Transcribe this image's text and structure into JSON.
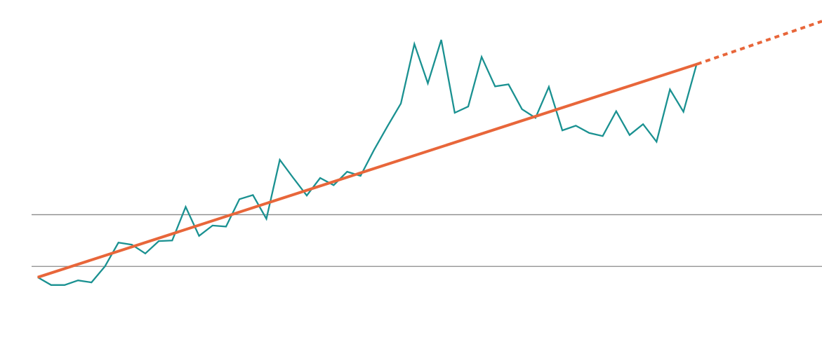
{
  "chart_data": {
    "type": "line",
    "xlim": [
      -2.8,
      58.3
    ],
    "ylim": [
      -15,
      51.5
    ],
    "yticks": [
      0,
      10
    ],
    "grid": true,
    "x": [
      0,
      1,
      2,
      3,
      4,
      5,
      6,
      7,
      8,
      9,
      10,
      11,
      12,
      13,
      14,
      15,
      16,
      17,
      18,
      19,
      20,
      21,
      22,
      23,
      24,
      25,
      26,
      27,
      28,
      29,
      30,
      31,
      32,
      33,
      34,
      35,
      36,
      37,
      38,
      39,
      40,
      41,
      42,
      43,
      44,
      45,
      46,
      47,
      48,
      49
    ],
    "series": [
      {
        "color": "#1a9191",
        "values": [
          -2.1,
          -3.6,
          -3.6,
          -2.7,
          -3.1,
          0,
          4.6,
          4.2,
          2.5,
          4.9,
          5.0,
          11.5,
          5.9,
          7.9,
          7.7,
          13.0,
          13.8,
          9.2,
          20.6,
          17.1,
          13.7,
          17.1,
          15.7,
          18.3,
          17.5,
          22.5,
          27.1,
          31.5,
          43.0,
          35.4,
          43.8,
          29.7,
          30.9,
          40.5,
          34.8,
          35.2,
          30.4,
          28.7,
          34.7,
          26.3,
          27.2,
          25.8,
          25.2,
          30.0,
          25.4,
          27.5,
          24.1,
          34.2,
          29.9,
          39.3
        ]
      },
      {
        "color": "#e8663a",
        "x": [
          0,
          49
        ],
        "values": [
          -2.1,
          39.1
        ]
      },
      {
        "color": "#e8663a",
        "x": [
          49,
          58.3
        ],
        "values": [
          39.1,
          47.4
        ],
        "dashed": true
      }
    ]
  }
}
